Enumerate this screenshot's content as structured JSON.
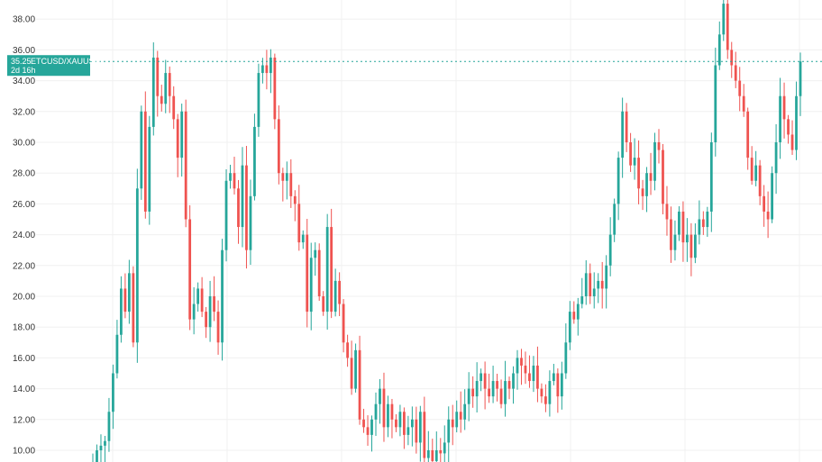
{
  "colors": {
    "up": "#26a69a",
    "down": "#ef5350",
    "grid": "#f0f0f0",
    "tag_bg": "#26a69a",
    "axis_text": "#333333"
  },
  "price_tag": {
    "price": 35.25,
    "price_label": "35.25",
    "symbol": "ETCUSD/XAUUSD",
    "countdown": "2d 16h"
  },
  "chart_data": {
    "type": "candlestick",
    "ylim": [
      9.0,
      39.5
    ],
    "y_ticks": [
      10,
      12,
      14,
      16,
      18,
      20,
      22,
      24,
      26,
      28,
      30,
      32,
      34,
      36,
      38
    ],
    "y_tick_labels": [
      "10.00",
      "12.00",
      "14.00",
      "16.00",
      "18.00",
      "20.00",
      "22.00",
      "24.00",
      "26.00",
      "28.00",
      "30.00",
      "32.00",
      "34.00",
      "36.00",
      "38.00"
    ],
    "grid": true,
    "closes": [
      9.0,
      10.0,
      10.3,
      10.6,
      12.5,
      15.0,
      17.5,
      20.5,
      19.0,
      21.5,
      17.0,
      27.0,
      32.0,
      25.5,
      31.0,
      35.5,
      33.0,
      32.5,
      34.5,
      33.0,
      31.5,
      29.0,
      32.0,
      25.0,
      18.5,
      19.5,
      20.5,
      19.0,
      18.0,
      20.0,
      19.0,
      17.0,
      23.0,
      27.5,
      28.0,
      27.0,
      24.5,
      28.5,
      23.0,
      26.5,
      31.0,
      34.5,
      35.0,
      34.5,
      35.5,
      31.5,
      28.0,
      27.5,
      28.0,
      26.5,
      26.0,
      23.5,
      24.0,
      19.0,
      22.5,
      23.0,
      20.0,
      19.0,
      24.5,
      19.0,
      21.0,
      19.5,
      17.0,
      16.0,
      14.0,
      16.5,
      12.0,
      11.5,
      11.0,
      12.0,
      13.0,
      14.0,
      11.5,
      13.0,
      12.0,
      11.5,
      12.5,
      11.0,
      11.5,
      12.0,
      10.5,
      12.5,
      9.5,
      10.0,
      9.3,
      10.0,
      9.8,
      10.5,
      12.0,
      11.5,
      12.5,
      12.0,
      13.0,
      14.0,
      13.5,
      14.5,
      15.0,
      14.0,
      13.5,
      14.5,
      14.0,
      13.0,
      14.5,
      14.0,
      15.0,
      16.0,
      15.5,
      15.0,
      14.5,
      15.5,
      14.0,
      13.5,
      13.0,
      14.5,
      15.0,
      13.5,
      15.0,
      17.0,
      19.0,
      18.5,
      19.5,
      20.0,
      21.5,
      20.0,
      20.5,
      21.0,
      20.5,
      22.0,
      24.0,
      26.0,
      29.0,
      32.0,
      30.0,
      28.5,
      29.0,
      27.0,
      26.5,
      28.0,
      27.5,
      30.0,
      29.5,
      26.0,
      25.0,
      23.0,
      24.0,
      25.5,
      23.5,
      24.0,
      22.5,
      24.0,
      25.0,
      24.5,
      25.5,
      30.0,
      35.0,
      37.0,
      39.0,
      36.0,
      35.0,
      34.0,
      33.0,
      32.0,
      29.0,
      27.5,
      28.5,
      26.5,
      25.5,
      25.0,
      28.0,
      30.0,
      33.0,
      31.5,
      30.5,
      29.5,
      33.0,
      35.25
    ],
    "current_price": 35.25
  }
}
